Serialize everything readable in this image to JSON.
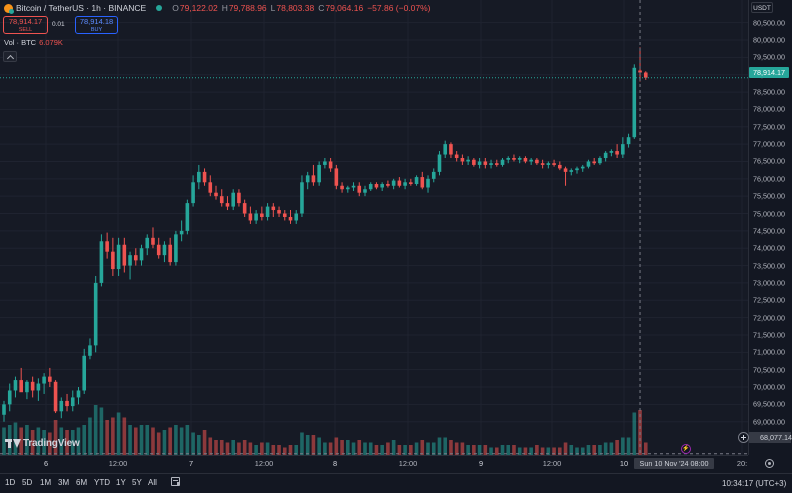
{
  "legend": {
    "symbol_icon": "bitcoin-icon",
    "title": "Bitcoin / TetherUS · 1h · BINANCE",
    "ohlc": [
      {
        "label": "O",
        "value": "79,122.02"
      },
      {
        "label": "H",
        "value": "79,788.96"
      },
      {
        "label": "L",
        "value": "78,803.38"
      },
      {
        "label": "C",
        "value": "79,064.16"
      }
    ],
    "change": "−57.86 (−0.07%)",
    "sell": {
      "price": "78,914.17",
      "label": "SELL"
    },
    "buy": {
      "price": "78,914.18",
      "label": "BUY"
    },
    "spread": "0.01",
    "volume": {
      "label": "Vol · BTC",
      "value": "6.079K"
    }
  },
  "price_scale": {
    "currency": "USDT",
    "last_price": "78,914.17",
    "crosshair_price": "68,077.14"
  },
  "time_scale": {
    "crosshair_time": "Sun 10 Nov '24   08:00"
  },
  "toolbar": {
    "ranges": [
      "1D",
      "5D",
      "1M",
      "3M",
      "6M",
      "YTD",
      "1Y",
      "5Y",
      "All"
    ],
    "clock": "10:34:17 (UTC+3)"
  },
  "brand": "TradingView",
  "colors": {
    "up": "#26a69a",
    "down": "#ef5350",
    "volume_up": "#26a69a",
    "volume_down": "#ef5350",
    "background": "#161a25"
  },
  "chart_data": {
    "type": "candlestick",
    "interval": "1h",
    "symbol": "BTCUSDT",
    "y_ticks": [
      69000,
      69500,
      70000,
      70500,
      71000,
      71500,
      72000,
      72500,
      73000,
      73500,
      74000,
      74500,
      75000,
      75500,
      76000,
      76500,
      77000,
      77500,
      78000,
      78500,
      79000,
      79500,
      80000,
      80500
    ],
    "ylim": [
      68300,
      80750
    ],
    "x_ticks": [
      {
        "label": "6",
        "type": "day"
      },
      {
        "label": "12:00",
        "type": "time"
      },
      {
        "label": "7",
        "type": "day"
      },
      {
        "label": "12:00",
        "type": "time"
      },
      {
        "label": "8",
        "type": "day"
      },
      {
        "label": "12:00",
        "type": "time"
      },
      {
        "label": "9",
        "type": "day"
      },
      {
        "label": "12:00",
        "type": "time"
      },
      {
        "label": "10",
        "type": "day"
      },
      {
        "label": "20:",
        "type": "time"
      }
    ],
    "candles": {
      "fields": [
        "open",
        "high",
        "low",
        "close"
      ],
      "values": [
        [
          69200,
          69600,
          69000,
          69500
        ],
        [
          69500,
          70100,
          69300,
          69900
        ],
        [
          69900,
          70300,
          69700,
          70200
        ],
        [
          70200,
          70550,
          69900,
          69850
        ],
        [
          69850,
          70200,
          69650,
          70150
        ],
        [
          70150,
          70300,
          69700,
          69900
        ],
        [
          69900,
          70250,
          69600,
          70100
        ],
        [
          70100,
          70400,
          69800,
          70300
        ],
        [
          70300,
          70550,
          70000,
          70150
        ],
        [
          70150,
          70200,
          69250,
          69300
        ],
        [
          69300,
          69700,
          69100,
          69600
        ],
        [
          69600,
          69800,
          69300,
          69450
        ],
        [
          69450,
          69900,
          69300,
          69700
        ],
        [
          69700,
          70000,
          69500,
          69900
        ],
        [
          69900,
          71100,
          69800,
          70900
        ],
        [
          70900,
          71400,
          70800,
          71200
        ],
        [
          71200,
          73200,
          71000,
          73000
        ],
        [
          73000,
          74400,
          72900,
          74200
        ],
        [
          74200,
          74450,
          73700,
          73900
        ],
        [
          73900,
          74300,
          73200,
          73400
        ],
        [
          73400,
          74300,
          73200,
          74100
        ],
        [
          74100,
          74300,
          73300,
          73500
        ],
        [
          73500,
          73900,
          73100,
          73800
        ],
        [
          73800,
          74000,
          73500,
          73650
        ],
        [
          73650,
          74100,
          73500,
          74000
        ],
        [
          74000,
          74400,
          73800,
          74300
        ],
        [
          74300,
          74600,
          74000,
          74100
        ],
        [
          74100,
          74300,
          73700,
          73800
        ],
        [
          73800,
          74200,
          73600,
          74100
        ],
        [
          74100,
          74300,
          73500,
          73600
        ],
        [
          73600,
          74500,
          73500,
          74400
        ],
        [
          74400,
          74800,
          74200,
          74500
        ],
        [
          74500,
          75400,
          74400,
          75300
        ],
        [
          75300,
          76100,
          75200,
          75900
        ],
        [
          75900,
          76400,
          75700,
          76200
        ],
        [
          76200,
          76300,
          75800,
          75900
        ],
        [
          75900,
          76100,
          75500,
          75600
        ],
        [
          75600,
          75800,
          75400,
          75500
        ],
        [
          75500,
          75700,
          75200,
          75300
        ],
        [
          75300,
          75500,
          75100,
          75200
        ],
        [
          75200,
          75700,
          75100,
          75600
        ],
        [
          75600,
          75700,
          75200,
          75300
        ],
        [
          75300,
          75400,
          74900,
          75000
        ],
        [
          75000,
          75200,
          74700,
          74800
        ],
        [
          74800,
          75100,
          74700,
          75000
        ],
        [
          75000,
          75200,
          74800,
          74900
        ],
        [
          74900,
          75300,
          74800,
          75200
        ],
        [
          75200,
          75300,
          74900,
          75100
        ],
        [
          75100,
          75200,
          74900,
          75000
        ],
        [
          75000,
          75100,
          74800,
          74900
        ],
        [
          74900,
          75100,
          74700,
          74800
        ],
        [
          74800,
          75100,
          74700,
          75000
        ],
        [
          75000,
          76100,
          74900,
          75900
        ],
        [
          75900,
          76200,
          75700,
          76100
        ],
        [
          76100,
          76400,
          75800,
          75900
        ],
        [
          75900,
          76500,
          75800,
          76400
        ],
        [
          76400,
          76600,
          76300,
          76500
        ],
        [
          76500,
          76600,
          76200,
          76300
        ],
        [
          76300,
          76400,
          75700,
          75800
        ],
        [
          75800,
          75900,
          75600,
          75700
        ],
        [
          75700,
          75800,
          75600,
          75750
        ],
        [
          75750,
          75900,
          75650,
          75800
        ],
        [
          75800,
          75900,
          75500,
          75600
        ],
        [
          75600,
          75800,
          75500,
          75700
        ],
        [
          75700,
          75900,
          75650,
          75850
        ],
        [
          75850,
          75900,
          75700,
          75750
        ],
        [
          75750,
          75900,
          75650,
          75850
        ],
        [
          75850,
          75950,
          75750,
          75800
        ],
        [
          75800,
          76000,
          75700,
          75950
        ],
        [
          75950,
          76050,
          75750,
          75800
        ],
        [
          75800,
          76000,
          75700,
          75900
        ],
        [
          75900,
          76000,
          75800,
          75850
        ],
        [
          75850,
          76100,
          75800,
          76050
        ],
        [
          76050,
          76200,
          75700,
          75750
        ],
        [
          75750,
          76100,
          75600,
          76000
        ],
        [
          76000,
          76300,
          75900,
          76200
        ],
        [
          76200,
          76800,
          76100,
          76700
        ],
        [
          76700,
          77100,
          76600,
          77000
        ],
        [
          77000,
          77050,
          76600,
          76700
        ],
        [
          76700,
          76800,
          76500,
          76600
        ],
        [
          76600,
          76700,
          76400,
          76500
        ],
        [
          76500,
          76650,
          76400,
          76550
        ],
        [
          76550,
          76600,
          76350,
          76400
        ],
        [
          76400,
          76600,
          76300,
          76500
        ],
        [
          76500,
          76600,
          76300,
          76400
        ],
        [
          76400,
          76550,
          76300,
          76450
        ],
        [
          76450,
          76550,
          76350,
          76400
        ],
        [
          76400,
          76600,
          76350,
          76550
        ],
        [
          76550,
          76650,
          76450,
          76600
        ],
        [
          76600,
          76700,
          76500,
          76550
        ],
        [
          76550,
          76650,
          76450,
          76600
        ],
        [
          76600,
          76650,
          76450,
          76500
        ],
        [
          76500,
          76600,
          76400,
          76550
        ],
        [
          76550,
          76600,
          76400,
          76450
        ],
        [
          76450,
          76550,
          76300,
          76400
        ],
        [
          76400,
          76500,
          76300,
          76450
        ],
        [
          76450,
          76550,
          76350,
          76400
        ],
        [
          76400,
          76500,
          76250,
          76300
        ],
        [
          76300,
          76350,
          75800,
          76200
        ],
        [
          76200,
          76300,
          76100,
          76250
        ],
        [
          76250,
          76350,
          76150,
          76300
        ],
        [
          76300,
          76400,
          76200,
          76350
        ],
        [
          76350,
          76550,
          76300,
          76500
        ],
        [
          76500,
          76600,
          76400,
          76450
        ],
        [
          76450,
          76650,
          76400,
          76600
        ],
        [
          76600,
          76800,
          76500,
          76750
        ],
        [
          76750,
          76850,
          76650,
          76800
        ],
        [
          76800,
          77000,
          76600,
          76700
        ],
        [
          76700,
          77200,
          76600,
          77000
        ],
        [
          77000,
          77300,
          76900,
          77200
        ],
        [
          77200,
          79300,
          77150,
          79200
        ],
        [
          79122.02,
          79788.96,
          78803.38,
          79064.16
        ],
        [
          79064.16,
          79100,
          78850,
          78914.17
        ]
      ]
    },
    "volume_relative": [
      0.55,
      0.6,
      0.65,
      0.55,
      0.6,
      0.5,
      0.55,
      0.5,
      0.45,
      0.7,
      0.55,
      0.5,
      0.5,
      0.55,
      0.6,
      0.75,
      1.0,
      0.95,
      0.7,
      0.75,
      0.85,
      0.75,
      0.6,
      0.55,
      0.6,
      0.6,
      0.55,
      0.45,
      0.5,
      0.55,
      0.6,
      0.55,
      0.6,
      0.45,
      0.4,
      0.5,
      0.35,
      0.3,
      0.3,
      0.25,
      0.3,
      0.25,
      0.3,
      0.25,
      0.2,
      0.25,
      0.25,
      0.2,
      0.2,
      0.15,
      0.2,
      0.2,
      0.45,
      0.4,
      0.4,
      0.35,
      0.25,
      0.25,
      0.35,
      0.3,
      0.3,
      0.25,
      0.3,
      0.25,
      0.25,
      0.2,
      0.2,
      0.25,
      0.3,
      0.2,
      0.2,
      0.2,
      0.25,
      0.3,
      0.25,
      0.25,
      0.35,
      0.35,
      0.3,
      0.25,
      0.25,
      0.2,
      0.2,
      0.2,
      0.2,
      0.15,
      0.15,
      0.2,
      0.2,
      0.2,
      0.15,
      0.15,
      0.15,
      0.2,
      0.15,
      0.15,
      0.15,
      0.15,
      0.25,
      0.2,
      0.15,
      0.15,
      0.2,
      0.2,
      0.2,
      0.25,
      0.25,
      0.3,
      0.35,
      0.35,
      0.85,
      0.9,
      0.25
    ],
    "crosshair": {
      "price": 68077.14,
      "time": "Sun 10 Nov '24 08:00"
    }
  }
}
